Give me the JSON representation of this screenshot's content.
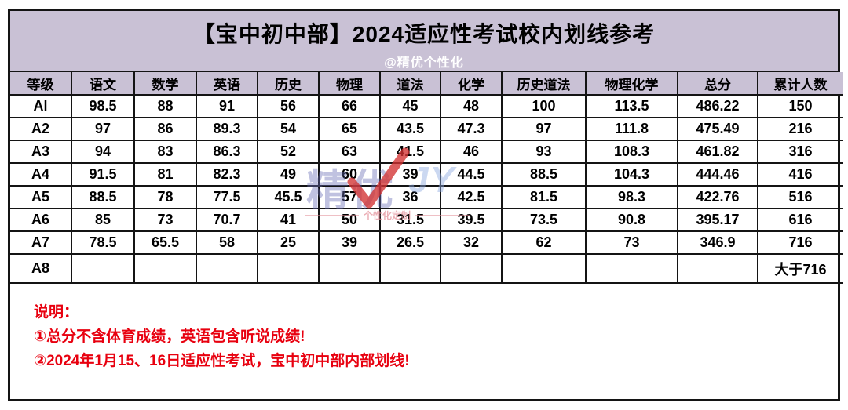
{
  "header": {
    "title": "【宝中初中部】2024适应性考试校内划线参考",
    "subtitle": "@精优个性化"
  },
  "table": {
    "columns": [
      "等级",
      "语文",
      "数学",
      "英语",
      "历史",
      "物理",
      "道法",
      "化学",
      "历史道法",
      "物理化学",
      "总分",
      "累计人数"
    ],
    "rows": [
      [
        "Al",
        "98.5",
        "88",
        "91",
        "56",
        "66",
        "45",
        "48",
        "100",
        "113.5",
        "486.22",
        "150"
      ],
      [
        "A2",
        "97",
        "86",
        "89.3",
        "54",
        "65",
        "43.5",
        "47.3",
        "97",
        "111.8",
        "475.49",
        "216"
      ],
      [
        "A3",
        "94",
        "83",
        "86.3",
        "52",
        "63",
        "41.5",
        "46",
        "93",
        "108.3",
        "461.82",
        "316"
      ],
      [
        "A4",
        "91.5",
        "81",
        "82.3",
        "49",
        "60",
        "39",
        "44.5",
        "88.5",
        "104.3",
        "444.46",
        "416"
      ],
      [
        "A5",
        "88.5",
        "78",
        "77.5",
        "45.5",
        "57",
        "36",
        "42.5",
        "81.5",
        "98.3",
        "422.76",
        "516"
      ],
      [
        "A6",
        "85",
        "73",
        "70.7",
        "41",
        "50",
        "31.5",
        "39.5",
        "73.5",
        "90.8",
        "395.17",
        "616"
      ],
      [
        "A7",
        "78.5",
        "65.5",
        "58",
        "25",
        "39",
        "26.5",
        "32",
        "62",
        "73",
        "346.9",
        "716"
      ],
      [
        "A8",
        "",
        "",
        "",
        "",
        "",
        "",
        "",
        "",
        "",
        "",
        "大于716"
      ]
    ]
  },
  "notes": {
    "heading": "说明：",
    "items": [
      "①总分不含体育成绩，英语包含听说成绩!",
      "②2024年1月15、16日适应性考试，宝中初中部内部划线!"
    ]
  },
  "watermark": {
    "text": "精优",
    "suffix": "JY",
    "caption": "个性化定制"
  },
  "colors": {
    "band_bg": "#c9c1d5",
    "border": "#141414",
    "note_red": "#e8000f",
    "subtitle_white": "#ffffff",
    "watermark_blue": "#686eb4",
    "watermark_check_red": "#d23232"
  }
}
